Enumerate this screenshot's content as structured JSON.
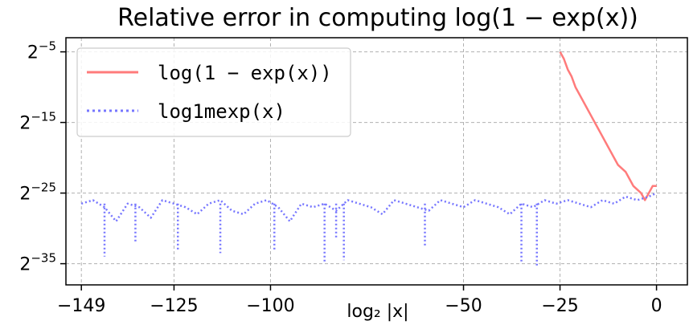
{
  "chart_data": {
    "type": "line",
    "title": "Relative error in computing log(1 − exp(x))",
    "xlabel": "log₂ |x|",
    "ylabel": "",
    "x_ticks": [
      {
        "value": -149,
        "label": "−149"
      },
      {
        "value": -125,
        "label": "−125"
      },
      {
        "value": -100,
        "label": "−100"
      },
      {
        "value": -50,
        "label": "−50"
      },
      {
        "value": -25,
        "label": "−25"
      },
      {
        "value": 0,
        "label": "0"
      }
    ],
    "y_ticks": [
      {
        "value": -5,
        "base": "2",
        "exp": "−5"
      },
      {
        "value": -15,
        "base": "2",
        "exp": "−15"
      },
      {
        "value": -25,
        "base": "2",
        "exp": "−25"
      },
      {
        "value": -35,
        "base": "2",
        "exp": "−35"
      }
    ],
    "xlim": [
      -153,
      8
    ],
    "ylim": [
      -38,
      -3
    ],
    "y_scale": "log2",
    "grid": true,
    "legend_position": "top-left",
    "series": [
      {
        "name": "log(1 − exp(x))",
        "color": "#ff7b7b",
        "style": "solid",
        "x": [
          -25,
          -24,
          -23,
          -22,
          -21,
          -20,
          -19,
          -18,
          -17,
          -16,
          -15,
          -14,
          -13,
          -12,
          -11,
          -10,
          -9,
          -8,
          -7,
          -6,
          -5,
          -4,
          -3,
          -2,
          -1,
          0
        ],
        "y": [
          -5,
          -6,
          -7.5,
          -8.5,
          -10,
          -11,
          -12,
          -13,
          -14,
          -15,
          -16,
          -17,
          -18,
          -19,
          -20,
          -21,
          -21.5,
          -22,
          -23,
          -24,
          -24.5,
          -25,
          -26,
          -25,
          -24,
          -24
        ]
      },
      {
        "name": "log1mexp(x)",
        "color": "#7777ff",
        "style": "dotted",
        "x": [
          -149,
          -146,
          -143,
          -140,
          -137,
          -134,
          -131,
          -128,
          -125,
          -122,
          -119,
          -116,
          -113,
          -110,
          -107,
          -104,
          -101,
          -98,
          -95,
          -92,
          -89,
          -86,
          -83,
          -80,
          -77,
          -74,
          -71,
          -68,
          -65,
          -62,
          -59,
          -56,
          -53,
          -50,
          -47,
          -44,
          -41,
          -38,
          -35,
          -32,
          -29,
          -26,
          -23,
          -20,
          -17,
          -14,
          -11,
          -8,
          -5,
          -2,
          0
        ],
        "y": [
          -26.5,
          -26,
          -27,
          -29,
          -26.5,
          -27,
          -28.5,
          -26,
          -26.5,
          -27,
          -28,
          -26.5,
          -26,
          -27.5,
          -28,
          -26.5,
          -26,
          -27,
          -29,
          -26.5,
          -27,
          -26.5,
          -27.5,
          -26,
          -26.5,
          -27,
          -28,
          -26,
          -26.5,
          -27,
          -27.5,
          -26,
          -26.5,
          -27,
          -26,
          -26.5,
          -27,
          -28,
          -26.5,
          -27,
          -26,
          -26.5,
          -26,
          -26.5,
          -27,
          -26,
          -26.5,
          -25.5,
          -26,
          -25.5,
          -25
        ],
        "dips": [
          {
            "x": -143,
            "y": -34
          },
          {
            "x": -135,
            "y": -32
          },
          {
            "x": -124,
            "y": -33
          },
          {
            "x": -113,
            "y": -33.5
          },
          {
            "x": -99,
            "y": -33
          },
          {
            "x": -86,
            "y": -35
          },
          {
            "x": -83,
            "y": -31.5
          },
          {
            "x": -81,
            "y": -34.5
          },
          {
            "x": -60,
            "y": -32.5
          },
          {
            "x": -35,
            "y": -35
          },
          {
            "x": -31,
            "y": -35.5
          }
        ]
      }
    ]
  }
}
